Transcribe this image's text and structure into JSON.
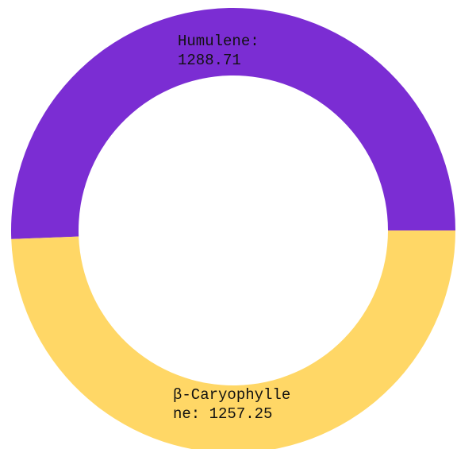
{
  "chart_data": {
    "type": "pie",
    "donut": true,
    "categories": [
      "Humulene",
      "β-Caryophyllene"
    ],
    "values": [
      1288.71,
      1257.25
    ],
    "colors": [
      "#7b2dd3",
      "#ffd766"
    ],
    "labels": [
      [
        "Humulene:",
        "1288.71"
      ],
      [
        "β-Caryophylle",
        "ne: 1257.25"
      ]
    ],
    "title": "",
    "legend": "none"
  }
}
